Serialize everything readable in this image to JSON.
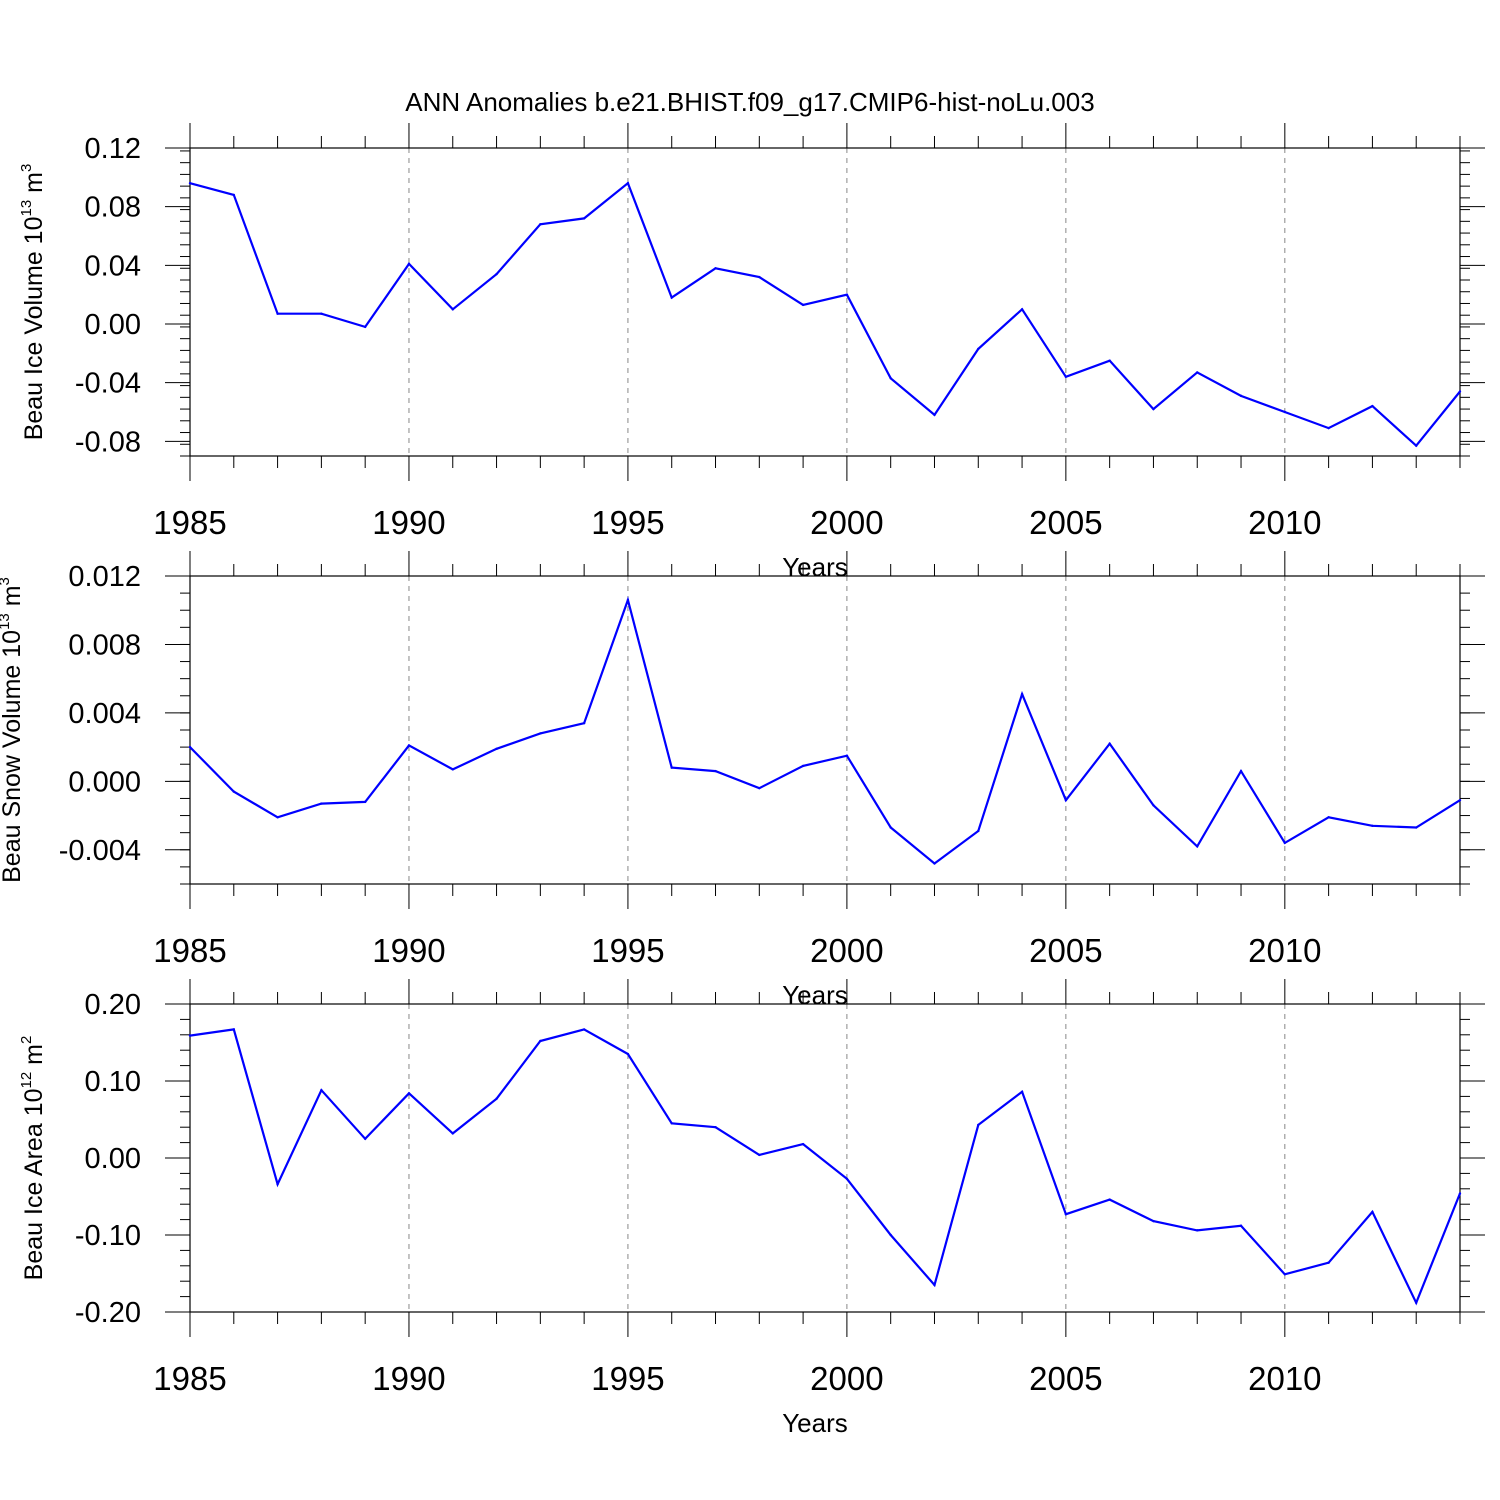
{
  "figure_title": "ANN Anomalies b.e21.BHIST.f09_g17.CMIP6-hist-noLu.003",
  "chart_data": [
    {
      "type": "line",
      "title": "ANN Anomalies b.e21.BHIST.f09_g17.CMIP6-hist-noLu.003",
      "ylabel_main": "Beau Ice Volume 10",
      "ylabel_exp": "13",
      "ylabel_unit": " m",
      "ylabel_unit_exp": "3",
      "xlabel": "Years",
      "xlim": [
        1985,
        2014
      ],
      "ylim": [
        -0.09,
        0.12
      ],
      "x_major_ticks": [
        1985,
        1990,
        1995,
        2000,
        2005,
        2010
      ],
      "x_tick_labels": [
        "1985",
        "1990",
        "1995",
        "2000",
        "2005",
        "2010"
      ],
      "y_major_ticks": [
        -0.08,
        -0.04,
        0.0,
        0.04,
        0.08,
        0.12
      ],
      "y_tick_labels": [
        "-0.08",
        "-0.04",
        "0.00",
        "0.04",
        "0.08",
        "0.12"
      ],
      "y_minor_step": 0.008,
      "grid": "vertical dashed at major x ticks",
      "line_color": "#0000ff",
      "series": [
        {
          "name": "Beau Ice Volume",
          "x": [
            1985,
            1986,
            1987,
            1988,
            1989,
            1990,
            1991,
            1992,
            1993,
            1994,
            1995,
            1996,
            1997,
            1998,
            1999,
            2000,
            2001,
            2002,
            2003,
            2004,
            2005,
            2006,
            2007,
            2008,
            2009,
            2010,
            2011,
            2012,
            2013,
            2014
          ],
          "values": [
            0.096,
            0.088,
            0.007,
            0.007,
            -0.002,
            0.041,
            0.01,
            0.034,
            0.068,
            0.072,
            0.096,
            0.018,
            0.038,
            0.032,
            0.013,
            0.02,
            -0.037,
            -0.062,
            -0.017,
            0.01,
            -0.036,
            -0.025,
            -0.058,
            -0.033,
            -0.049,
            -0.06,
            -0.071,
            -0.056,
            -0.083,
            -0.046
          ]
        }
      ]
    },
    {
      "type": "line",
      "ylabel_main": "Beau Snow Volume 10",
      "ylabel_exp": "13",
      "ylabel_unit": " m",
      "ylabel_unit_exp": "3",
      "xlabel": "Years",
      "xlim": [
        1985,
        2014
      ],
      "ylim": [
        -0.006,
        0.012
      ],
      "x_major_ticks": [
        1985,
        1990,
        1995,
        2000,
        2005,
        2010
      ],
      "x_tick_labels": [
        "1985",
        "1990",
        "1995",
        "2000",
        "2005",
        "2010"
      ],
      "y_major_ticks": [
        -0.004,
        0.0,
        0.004,
        0.008,
        0.012
      ],
      "y_tick_labels": [
        "-0.004",
        "0.000",
        "0.004",
        "0.008",
        "0.012"
      ],
      "y_minor_step": 0.001,
      "grid": "vertical dashed at major x ticks",
      "line_color": "#0000ff",
      "series": [
        {
          "name": "Beau Snow Volume",
          "x": [
            1985,
            1986,
            1987,
            1988,
            1989,
            1990,
            1991,
            1992,
            1993,
            1994,
            1995,
            1996,
            1997,
            1998,
            1999,
            2000,
            2001,
            2002,
            2003,
            2004,
            2005,
            2006,
            2007,
            2008,
            2009,
            2010,
            2011,
            2012,
            2013,
            2014
          ],
          "values": [
            0.002,
            -0.0006,
            -0.0021,
            -0.0013,
            -0.0012,
            0.0021,
            0.0007,
            0.0019,
            0.0028,
            0.0034,
            0.0106,
            0.0008,
            0.0006,
            -0.0004,
            0.0009,
            0.0015,
            -0.0027,
            -0.0048,
            -0.0029,
            0.0051,
            -0.0011,
            0.0022,
            -0.0014,
            -0.0038,
            0.0006,
            -0.0036,
            -0.0021,
            -0.0026,
            -0.0027,
            -0.0011
          ]
        }
      ]
    },
    {
      "type": "line",
      "ylabel_main": "Beau Ice Area 10",
      "ylabel_exp": "12",
      "ylabel_unit": " m",
      "ylabel_unit_exp": "2",
      "xlabel": "Years",
      "xlim": [
        1985,
        2014
      ],
      "ylim": [
        -0.2,
        0.2
      ],
      "x_major_ticks": [
        1985,
        1990,
        1995,
        2000,
        2005,
        2010
      ],
      "x_tick_labels": [
        "1985",
        "1990",
        "1995",
        "2000",
        "2005",
        "2010"
      ],
      "y_major_ticks": [
        -0.2,
        -0.1,
        0.0,
        0.1,
        0.2
      ],
      "y_tick_labels": [
        "-0.20",
        "-0.10",
        "0.00",
        "0.10",
        "0.20"
      ],
      "y_minor_step": 0.02,
      "grid": "vertical dashed at major x ticks",
      "line_color": "#0000ff",
      "series": [
        {
          "name": "Beau Ice Area",
          "x": [
            1985,
            1986,
            1987,
            1988,
            1989,
            1990,
            1991,
            1992,
            1993,
            1994,
            1995,
            1996,
            1997,
            1998,
            1999,
            2000,
            2001,
            2002,
            2003,
            2004,
            2005,
            2006,
            2007,
            2008,
            2009,
            2010,
            2011,
            2012,
            2013,
            2014
          ],
          "values": [
            0.159,
            0.167,
            -0.034,
            0.088,
            0.025,
            0.084,
            0.032,
            0.077,
            0.152,
            0.167,
            0.135,
            0.045,
            0.04,
            0.004,
            0.018,
            -0.027,
            -0.1,
            -0.165,
            0.043,
            0.086,
            -0.073,
            -0.054,
            -0.082,
            -0.094,
            -0.088,
            -0.151,
            -0.136,
            -0.07,
            -0.188,
            -0.046
          ]
        }
      ]
    }
  ]
}
